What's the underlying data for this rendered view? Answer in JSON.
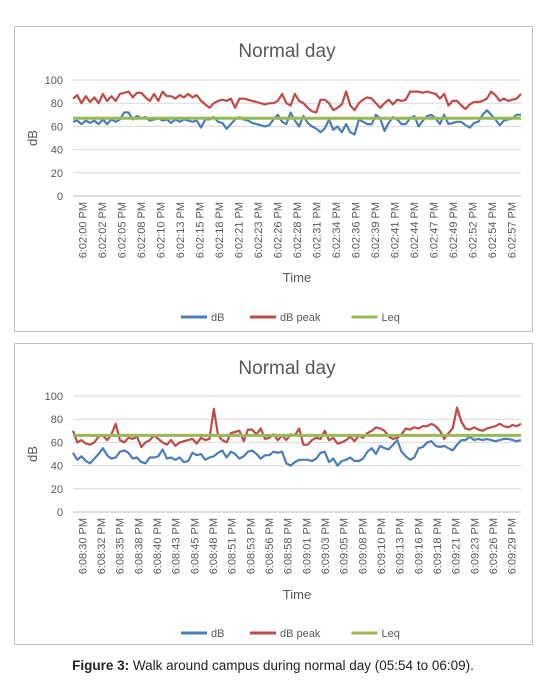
{
  "caption": {
    "label": "Figure 3:",
    "text": "Walk around campus during normal day (05:54 to 06:09)."
  },
  "colors": {
    "dB": "#4a7ebb",
    "dB_peak": "#be4b48",
    "Leq": "#98b954",
    "grid": "#d9d9d9",
    "text": "#595959"
  },
  "chart_data": [
    {
      "type": "line",
      "title": "Normal day",
      "xlabel": "Time",
      "ylabel": "dB",
      "ylim": [
        0,
        100
      ],
      "yticks": [
        0,
        20,
        40,
        60,
        80,
        100
      ],
      "grid": true,
      "legend_position": "bottom",
      "point_count": 106,
      "tick_labels": [
        "6:02:00 PM",
        "6:02:02 PM",
        "6:02:05 PM",
        "6:02:08 PM",
        "6:02:10 PM",
        "6:02:13 PM",
        "6:02:15 PM",
        "6:02:18 PM",
        "6:02:21 PM",
        "6:02:23 PM",
        "6:02:26 PM",
        "6:02:28 PM",
        "6:02:31 PM",
        "6:02:34 PM",
        "6:02:36 PM",
        "6:02:39 PM",
        "6:02:41 PM",
        "6:02:44 PM",
        "6:02:47 PM",
        "6:02:49 PM",
        "6:02:52 PM",
        "6:02:54 PM",
        "6:02:57 PM"
      ],
      "series": [
        {
          "name": "dB",
          "values": [
            64,
            65,
            62,
            65,
            63,
            65,
            62,
            66,
            62,
            66,
            64,
            66,
            72,
            72,
            66,
            69,
            67,
            68,
            65,
            66,
            67,
            65,
            66,
            63,
            66,
            64,
            66,
            65,
            64,
            65,
            59,
            66,
            66,
            68,
            64,
            63,
            58,
            62,
            66,
            68,
            66,
            65,
            63,
            62,
            61,
            60,
            61,
            66,
            70,
            64,
            62,
            72,
            65,
            60,
            69,
            63,
            60,
            58,
            55,
            58,
            66,
            57,
            60,
            55,
            62,
            55,
            53,
            66,
            64,
            62,
            62,
            70,
            67,
            56,
            63,
            68,
            66,
            62,
            62,
            67,
            69,
            60,
            65,
            69,
            70,
            67,
            62,
            70,
            62,
            63,
            64,
            64,
            61,
            59,
            63,
            64,
            70,
            74,
            70,
            66,
            61,
            65,
            66,
            67,
            70,
            70
          ]
        },
        {
          "name": "dB peak",
          "values": [
            84,
            87,
            80,
            86,
            81,
            85,
            80,
            88,
            82,
            86,
            82,
            88,
            89,
            90,
            85,
            89,
            89,
            85,
            82,
            88,
            82,
            90,
            86,
            86,
            84,
            87,
            85,
            88,
            85,
            87,
            82,
            79,
            76,
            80,
            82,
            83,
            82,
            84,
            76,
            84,
            84,
            83,
            82,
            81,
            80,
            79,
            80,
            80,
            82,
            88,
            80,
            78,
            88,
            82,
            80,
            76,
            73,
            72,
            83,
            83,
            80,
            74,
            76,
            79,
            90,
            78,
            74,
            80,
            83,
            85,
            84,
            80,
            76,
            80,
            83,
            79,
            83,
            82,
            83,
            90,
            90,
            90,
            89,
            90,
            89,
            88,
            84,
            88,
            78,
            82,
            82,
            78,
            75,
            79,
            81,
            81,
            82,
            84,
            90,
            87,
            82,
            84,
            82,
            83,
            84,
            88
          ]
        },
        {
          "name": "Leq",
          "values": [
            67,
            67
          ]
        }
      ]
    },
    {
      "type": "line",
      "title": "Normal day",
      "xlabel": "Time",
      "ylabel": "dB",
      "ylim": [
        0,
        100
      ],
      "yticks": [
        0,
        20,
        40,
        60,
        80,
        100
      ],
      "grid": true,
      "legend_position": "bottom",
      "point_count": 106,
      "tick_labels": [
        "6:08:30 PM",
        "6:08:32 PM",
        "6:08:35 PM",
        "6:08:38 PM",
        "6:08:40 PM",
        "6:08:43 PM",
        "6:08:45 PM",
        "6:08:48 PM",
        "6:08:51 PM",
        "6:08:53 PM",
        "6:08:56 PM",
        "6:08:58 PM",
        "6:09:01 PM",
        "6:09:03 PM",
        "6:09:05 PM",
        "6:09:08 PM",
        "6:09:10 PM",
        "6:09:13 PM",
        "6:09:16 PM",
        "6:09:18 PM",
        "6:09:21 PM",
        "6:09:23 PM",
        "6:09:26 PM",
        "6:09:29 PM"
      ],
      "series": [
        {
          "name": "dB",
          "values": [
            51,
            45,
            48,
            44,
            42,
            46,
            50,
            55,
            49,
            46,
            47,
            52,
            53,
            51,
            46,
            47,
            43,
            42,
            47,
            47,
            48,
            54,
            46,
            47,
            45,
            47,
            43,
            44,
            51,
            49,
            50,
            45,
            47,
            48,
            51,
            53,
            47,
            52,
            50,
            46,
            48,
            52,
            53,
            50,
            46,
            49,
            49,
            52,
            51,
            52,
            42,
            40,
            43,
            45,
            45,
            45,
            44,
            46,
            51,
            52,
            43,
            46,
            40,
            44,
            45,
            47,
            44,
            44,
            46,
            52,
            55,
            50,
            57,
            55,
            54,
            58,
            62,
            52,
            48,
            45,
            47,
            55,
            56,
            60,
            61,
            57,
            56,
            57,
            55,
            53,
            58,
            62,
            62,
            65,
            62,
            63,
            62,
            63,
            62,
            61,
            62,
            63,
            63,
            62,
            61,
            62
          ]
        },
        {
          "name": "dB peak",
          "values": [
            70,
            60,
            62,
            59,
            58,
            60,
            65,
            66,
            62,
            67,
            76,
            62,
            60,
            64,
            63,
            65,
            56,
            60,
            62,
            66,
            63,
            60,
            58,
            62,
            57,
            60,
            61,
            62,
            63,
            59,
            64,
            62,
            63,
            89,
            66,
            62,
            60,
            68,
            69,
            70,
            61,
            71,
            71,
            67,
            72,
            63,
            64,
            67,
            62,
            66,
            62,
            67,
            66,
            72,
            58,
            58,
            62,
            64,
            63,
            70,
            62,
            64,
            59,
            60,
            62,
            65,
            61,
            66,
            64,
            68,
            70,
            73,
            72,
            70,
            65,
            63,
            64,
            67,
            72,
            71,
            73,
            72,
            74,
            74,
            76,
            74,
            70,
            63,
            68,
            72,
            90,
            78,
            72,
            71,
            73,
            71,
            70,
            72,
            73,
            74,
            76,
            74,
            73,
            75,
            74,
            76
          ]
        },
        {
          "name": "Leq",
          "values": [
            66,
            66
          ]
        }
      ]
    }
  ]
}
